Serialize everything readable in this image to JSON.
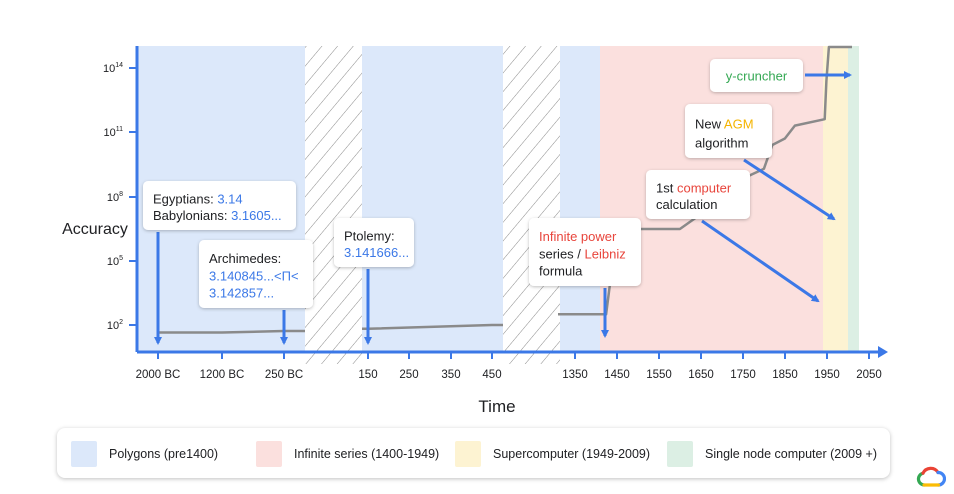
{
  "chart_data": {
    "type": "line",
    "xlabel": "Time",
    "ylabel": "Accuracy",
    "y_scale": "log",
    "y_ticks": [
      {
        "value": 100,
        "base": "10",
        "exp": "2"
      },
      {
        "value": 100000,
        "base": "10",
        "exp": "5"
      },
      {
        "value": 100000000,
        "base": "10",
        "exp": "8"
      },
      {
        "value": 100000000000,
        "base": "10",
        "exp": "11"
      },
      {
        "value": 100000000000000,
        "base": "10",
        "exp": "14"
      }
    ],
    "x_ticks": [
      "2000 BC",
      "1200 BC",
      "250 BC",
      "150",
      "250",
      "350",
      "450",
      "1350",
      "1450",
      "1550",
      "1650",
      "1750",
      "1850",
      "1950",
      "2050"
    ],
    "x_axis_breaks": [
      {
        "between": [
          "250 BC",
          "150"
        ]
      },
      {
        "between": [
          "450",
          "1350"
        ]
      }
    ],
    "series": [
      {
        "color": "#8a8a8a",
        "x": [
          -2000,
          -1200,
          -250,
          150,
          450,
          1350,
          1424,
          1450,
          1600,
          1650,
          1700,
          1800,
          1820,
          1850,
          1874,
          1945,
          1949,
          1955,
          1973,
          2000,
          2010
        ],
        "y": [
          1,
          1,
          1.2,
          1.5,
          2,
          2.5,
          2.5,
          6.5,
          6.5,
          7.2,
          8.4,
          9.3,
          10.4,
          10.7,
          11.3,
          11.6,
          13.4,
          15.2,
          20,
          52,
          59
        ]
      }
    ],
    "eras": [
      {
        "label": "Polygons (pre1400)",
        "color": "#dce8fa",
        "from": -2000,
        "to": 1400
      },
      {
        "label": "Infinite series (1400-1949)",
        "color": "#fbe0de",
        "from": 1400,
        "to": 1949
      },
      {
        "label": "Supercomputer (1949-2009)",
        "color": "#fdf3d2",
        "from": 1949,
        "to": 2009
      },
      {
        "label": "Single node computer (2009 +)",
        "color": "#dcefe4",
        "from": 2009,
        "to": 2025
      }
    ],
    "annotations": [
      {
        "id": "egypt",
        "lines": [
          [
            {
              "t": "Egyptians: ",
              "c": "#202124"
            },
            {
              "t": "3.14",
              "c": "#3b78e7"
            }
          ],
          [
            {
              "t": "Babylonians: ",
              "c": "#202124"
            },
            {
              "t": "3.1605...",
              "c": "#3b78e7"
            }
          ]
        ],
        "points_to": "2000 BC"
      },
      {
        "id": "archimedes",
        "lines": [
          [
            {
              "t": "Archimedes:",
              "c": "#202124"
            }
          ],
          [
            {
              "t": "3.140845...<Π<",
              "c": "#3b78e7"
            }
          ],
          [
            {
              "t": "3.142857...",
              "c": "#3b78e7"
            }
          ]
        ],
        "points_to": "250 BC"
      },
      {
        "id": "ptolemy",
        "lines": [
          [
            {
              "t": "Ptolemy:",
              "c": "#202124"
            }
          ],
          [
            {
              "t": "3.141666...",
              "c": "#3b78e7"
            }
          ]
        ],
        "points_to": "150"
      },
      {
        "id": "leibniz",
        "lines": [
          [
            {
              "t": "Infinite power",
              "c": "#e8453c"
            }
          ],
          [
            {
              "t": "series / ",
              "c": "#202124"
            },
            {
              "t": "Leibniz",
              "c": "#e8453c"
            }
          ],
          [
            {
              "t": "formula",
              "c": "#202124"
            }
          ]
        ],
        "points_to": "1424"
      },
      {
        "id": "firstcomp",
        "lines": [
          [
            {
              "t": "1st ",
              "c": "#202124"
            },
            {
              "t": "computer",
              "c": "#e8453c"
            }
          ],
          [
            {
              "t": "calculation",
              "c": "#202124"
            }
          ]
        ],
        "points_to": "1949"
      },
      {
        "id": "agm",
        "lines": [
          [
            {
              "t": "New ",
              "c": "#202124"
            },
            {
              "t": "AGM",
              "c": "#f4b400"
            }
          ],
          [
            {
              "t": "algorithm",
              "c": "#202124"
            }
          ]
        ],
        "points_to": "1975"
      },
      {
        "id": "ycruncher",
        "lines": [
          [
            {
              "t": "y-cruncher",
              "c": "#34a853"
            }
          ]
        ],
        "points_to": "2010"
      }
    ]
  },
  "colors": {
    "axis": "#3b78e7",
    "arrow": "#3b78e7",
    "line": "#8a8a8a"
  },
  "logo": "google-cloud-logo"
}
